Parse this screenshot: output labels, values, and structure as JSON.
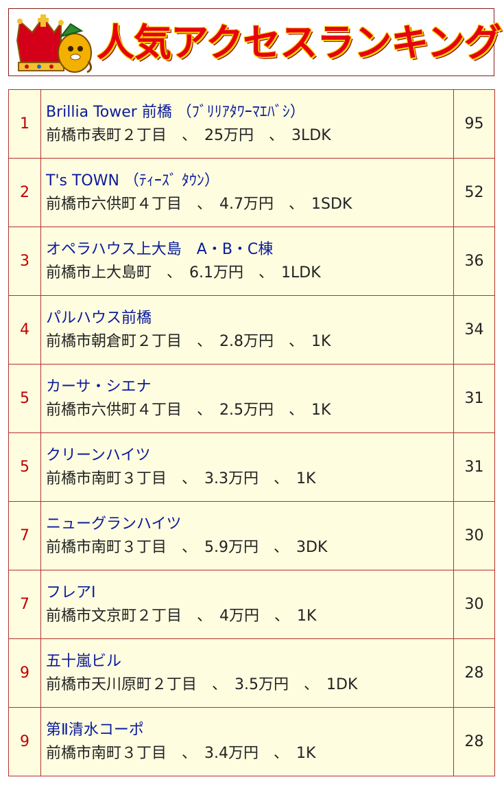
{
  "banner": {
    "title": "人気アクセスランキング",
    "icon": "crown-mascot-icon",
    "colors": {
      "title": "#e60012",
      "outline": "#ffd200"
    }
  },
  "ranking": {
    "rows": [
      {
        "rank": "1",
        "name": "Brillia Tower 前橋 （ﾌﾞﾘﾘｱﾀﾜｰﾏｴﾊﾞｼ）",
        "address": "前橋市表町２丁目",
        "rent": "25万円",
        "layout": "3LDK",
        "count": "95"
      },
      {
        "rank": "2",
        "name": "T's TOWN （ﾃｨｰｽﾞ ﾀｳﾝ）",
        "address": "前橋市六供町４丁目",
        "rent": "4.7万円",
        "layout": "1SDK",
        "count": "52"
      },
      {
        "rank": "3",
        "name": "オペラハウス上大島　A・B・C棟",
        "address": "前橋市上大島町",
        "rent": "6.1万円",
        "layout": "1LDK",
        "count": "36"
      },
      {
        "rank": "4",
        "name": "パルハウス前橋",
        "address": "前橋市朝倉町２丁目",
        "rent": "2.8万円",
        "layout": "1K",
        "count": "34"
      },
      {
        "rank": "5",
        "name": "カーサ・シエナ",
        "address": "前橋市六供町４丁目",
        "rent": "2.5万円",
        "layout": "1K",
        "count": "31"
      },
      {
        "rank": "5",
        "name": "クリーンハイツ",
        "address": "前橋市南町３丁目",
        "rent": "3.3万円",
        "layout": "1K",
        "count": "31"
      },
      {
        "rank": "7",
        "name": "ニューグランハイツ",
        "address": "前橋市南町３丁目",
        "rent": "5.9万円",
        "layout": "3DK",
        "count": "30"
      },
      {
        "rank": "7",
        "name": "フレアⅠ",
        "address": "前橋市文京町２丁目",
        "rent": "4万円",
        "layout": "1K",
        "count": "30"
      },
      {
        "rank": "9",
        "name": "五十嵐ビル",
        "address": "前橋市天川原町２丁目",
        "rent": "3.5万円",
        "layout": "1DK",
        "count": "28"
      },
      {
        "rank": "9",
        "name": "第Ⅱ清水コーポ",
        "address": "前橋市南町３丁目",
        "rent": "3.4万円",
        "layout": "1K",
        "count": "28"
      }
    ],
    "colors": {
      "rank": "#c00000",
      "name": "#0a1a9a",
      "border": "#b33030",
      "background": "#fffde0"
    }
  }
}
